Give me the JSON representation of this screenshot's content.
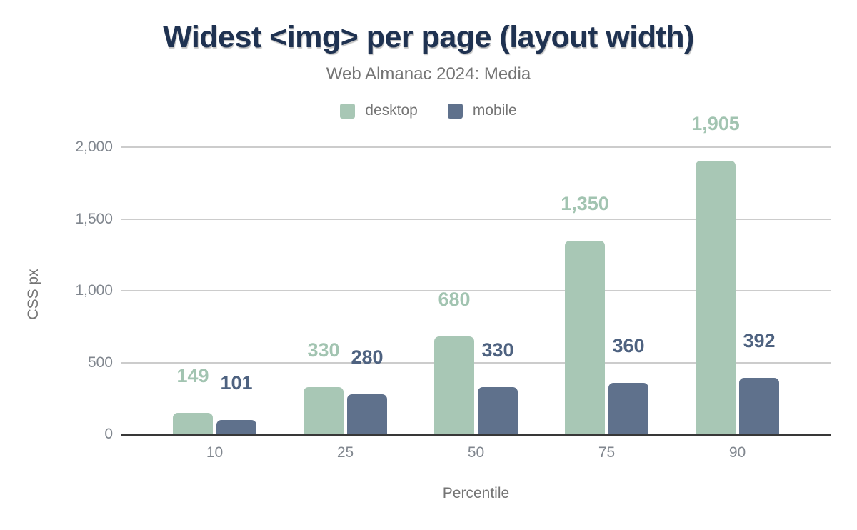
{
  "chart_data": {
    "type": "bar",
    "title": "Widest <img> per page (layout width)",
    "subtitle": "Web Almanac 2024: Media",
    "xlabel": "Percentile",
    "ylabel": "CSS px",
    "categories": [
      "10",
      "25",
      "50",
      "75",
      "90"
    ],
    "series": [
      {
        "name": "desktop",
        "color": "#a8c7b5",
        "label_color": "#a2c4b1",
        "values": [
          149,
          330,
          680,
          1350,
          1905
        ],
        "labels": [
          "149",
          "330",
          "680",
          "1,350",
          "1,905"
        ]
      },
      {
        "name": "mobile",
        "color": "#5f718c",
        "label_color": "#4e6280",
        "values": [
          101,
          280,
          330,
          360,
          392
        ],
        "labels": [
          "101",
          "280",
          "330",
          "360",
          "392"
        ]
      }
    ],
    "ylim": [
      0,
      2000
    ],
    "yticks": [
      {
        "value": 2000,
        "label": "2,000"
      },
      {
        "value": 1500,
        "label": "1,500"
      },
      {
        "value": 1000,
        "label": "1,000"
      },
      {
        "value": 500,
        "label": "500"
      },
      {
        "value": 0,
        "label": "0"
      }
    ],
    "grid": true,
    "legend_position": "top"
  },
  "colors": {
    "title": "#1f3251",
    "subtitle_text": "#757575",
    "tick_text": "#80868e",
    "gridline": "#cccccc",
    "axis_line": "#383838",
    "background": "#ffffff"
  }
}
